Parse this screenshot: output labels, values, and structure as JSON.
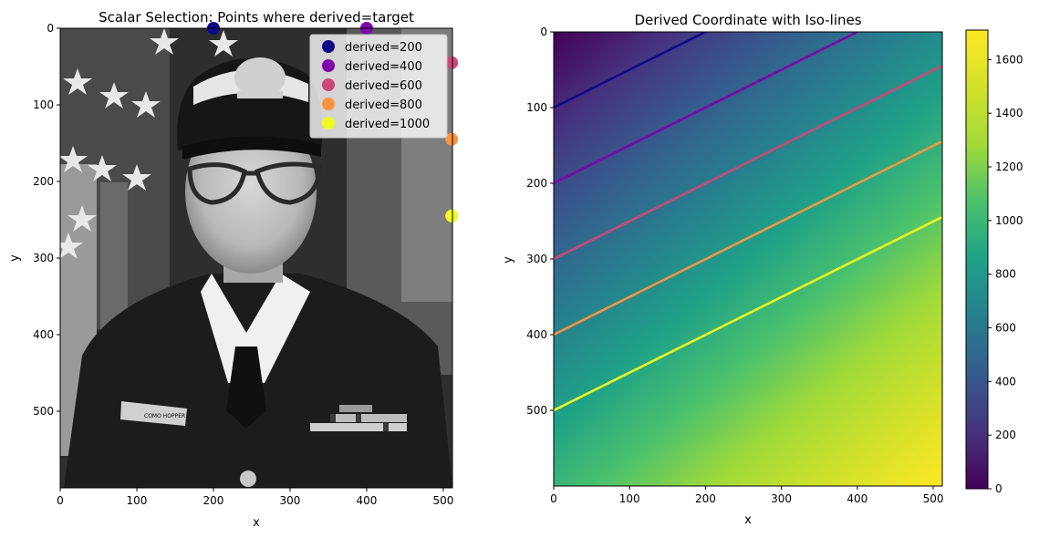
{
  "chart_data": [
    {
      "type": "scatter",
      "title": "Scalar Selection: Points where derived=target",
      "xlabel": "x",
      "ylabel": "y",
      "xlim": [
        0,
        512
      ],
      "ylim": [
        600,
        0
      ],
      "xticks": [
        0,
        100,
        200,
        300,
        400,
        500
      ],
      "yticks": [
        0,
        100,
        200,
        300,
        400,
        500
      ],
      "background": "grayscale photograph",
      "legend_position": "upper-right",
      "series": [
        {
          "name": "derived=200",
          "color": "#0d0887",
          "points": [
            [
              200,
              0
            ]
          ]
        },
        {
          "name": "derived=400",
          "color": "#7e03a8",
          "points": [
            [
              400,
              0
            ]
          ]
        },
        {
          "name": "derived=600",
          "color": "#cc4778",
          "points": [
            [
              511,
              45
            ]
          ]
        },
        {
          "name": "derived=800",
          "color": "#f89540",
          "points": [
            [
              511,
              145
            ]
          ]
        },
        {
          "name": "derived=1000",
          "color": "#f0f921",
          "points": [
            [
              511,
              245
            ]
          ]
        }
      ]
    },
    {
      "type": "heatmap",
      "title": "Derived Coordinate with Iso-lines",
      "xlabel": "x",
      "ylabel": "y",
      "xlim": [
        0,
        512
      ],
      "ylim": [
        600,
        0
      ],
      "xticks": [
        0,
        100,
        200,
        300,
        400,
        500
      ],
      "yticks": [
        0,
        100,
        200,
        300,
        400,
        500
      ],
      "colormap": "viridis",
      "value_range": [
        0,
        1710
      ],
      "colorbar_ticks": [
        0,
        200,
        400,
        600,
        800,
        1000,
        1200,
        1400,
        1600
      ],
      "isolines": [
        {
          "level": 200,
          "color": "#0d0887",
          "x": [
            0,
            200
          ],
          "y": [
            100,
            0
          ]
        },
        {
          "level": 400,
          "color": "#7e03a8",
          "x": [
            0,
            400
          ],
          "y": [
            200,
            0
          ]
        },
        {
          "level": 600,
          "color": "#cc4778",
          "x": [
            0,
            511
          ],
          "y": [
            300,
            45
          ]
        },
        {
          "level": 800,
          "color": "#f89540",
          "x": [
            0,
            511
          ],
          "y": [
            400,
            145
          ]
        },
        {
          "level": 1000,
          "color": "#f0f921",
          "x": [
            0,
            511
          ],
          "y": [
            500,
            245
          ]
        }
      ]
    }
  ]
}
